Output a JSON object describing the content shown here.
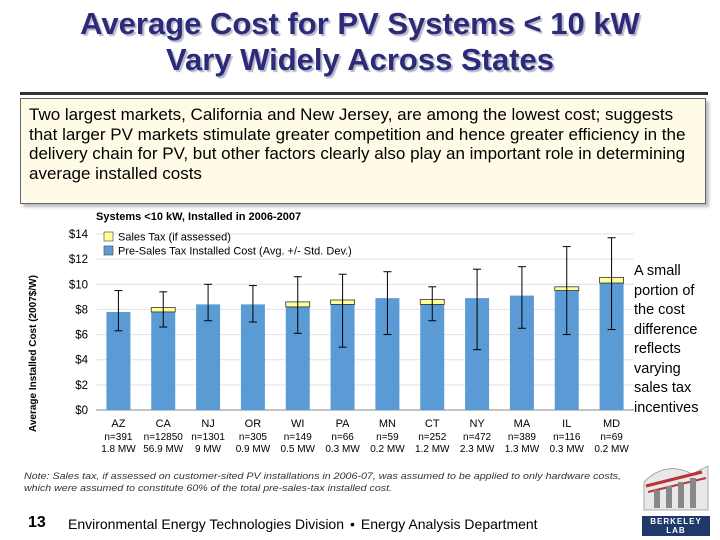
{
  "title": {
    "line1": "Average Cost for PV Systems < 10 kW",
    "line2": "Vary Widely Across States"
  },
  "callout": {
    "text": "Two largest markets, California and New Jersey, are among the lowest cost; suggests that larger PV markets stimulate greater competition and hence greater efficiency in the delivery chain for PV, but other factors clearly also play an important role in determining average installed costs"
  },
  "side_note": {
    "text": "A small portion of the cost difference reflects varying sales tax incentives"
  },
  "footnote": {
    "line1": "Note: Sales tax, if assessed on customer-sited PV installations in 2006-07, was assumed to be applied to only hardware costs,",
    "line2": "which were assumed to constitute 60% of the total pre-sales-tax installed cost."
  },
  "footer": {
    "page_number": "13",
    "division": "Environmental Energy Technologies Division",
    "separator": "•",
    "department": "Energy Analysis Department"
  },
  "logo": {
    "name": "berkeley-lab-logo",
    "text": "BERKELEY LAB"
  },
  "colors": {
    "title": "#2b2b7a",
    "bar_blue": "#5b9bd5",
    "bar_yellow": "#ffff99",
    "callout_bg": "#fffbe6"
  },
  "chart_data": {
    "type": "bar",
    "title": "Systems <10 kW, Installed in 2006-2007",
    "ylabel": "Average Installed Cost (2007$/W)",
    "xlabel": "",
    "ylim": [
      0,
      14
    ],
    "yticks": [
      0,
      2,
      4,
      6,
      8,
      10,
      12,
      14
    ],
    "ytick_labels": [
      "$0",
      "$2",
      "$4",
      "$6",
      "$8",
      "$10",
      "$12",
      "$14"
    ],
    "grid": true,
    "legend_position": "top-left",
    "categories": [
      "AZ",
      "CA",
      "NJ",
      "OR",
      "WI",
      "PA",
      "MN",
      "CT",
      "NY",
      "MA",
      "IL",
      "MD"
    ],
    "n_labels": [
      "n=391",
      "n=12850",
      "n=1301",
      "n=305",
      "n=149",
      "n=66",
      "n=59",
      "n=252",
      "n=472",
      "n=389",
      "n=116",
      "n=69"
    ],
    "mw_labels": [
      "1.8 MW",
      "56.9 MW",
      "9 MW",
      "0.9 MW",
      "0.5 MW",
      "0.3 MW",
      "0.2 MW",
      "1.2 MW",
      "2.3 MW",
      "1.3 MW",
      "0.3 MW",
      "0.2 MW"
    ],
    "series": [
      {
        "name": "Pre-Sales Tax Installed Cost (Avg. +/- Std. Dev.)",
        "values": [
          7.8,
          7.8,
          8.4,
          8.4,
          8.2,
          8.4,
          8.9,
          8.4,
          8.9,
          9.1,
          9.5,
          10.1
        ],
        "error_low": [
          6.3,
          6.6,
          7.1,
          7.0,
          6.1,
          5.0,
          6.0,
          7.1,
          4.8,
          6.5,
          6.0,
          6.4
        ],
        "error_high": [
          9.5,
          9.4,
          10.0,
          9.9,
          10.6,
          10.8,
          11.0,
          9.8,
          11.2,
          11.4,
          13.0,
          13.7
        ]
      },
      {
        "name": "Sales Tax (if assessed)",
        "values": [
          0.0,
          0.35,
          0.0,
          0.0,
          0.4,
          0.35,
          0.0,
          0.4,
          0.0,
          0.0,
          0.3,
          0.45
        ]
      }
    ]
  }
}
